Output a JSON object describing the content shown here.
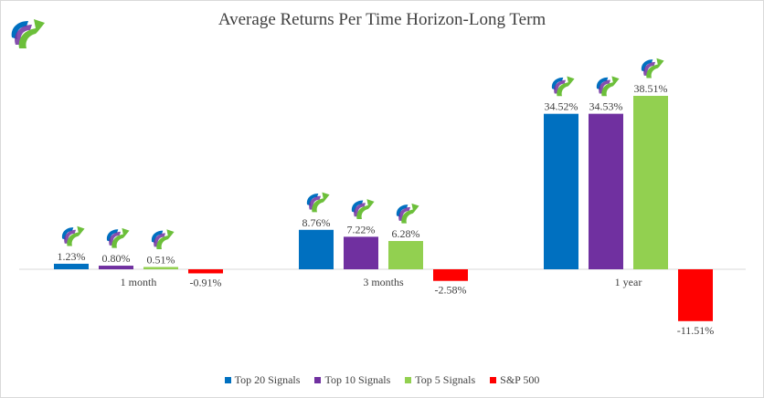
{
  "colors": {
    "top20": "#0070C0",
    "top10": "#7030A0",
    "top5": "#92D050",
    "sp500": "#FF0000",
    "axis": "#d9d9d9",
    "text": "#404040"
  },
  "chart_data": {
    "type": "bar",
    "title": "Average Returns Per Time Horizon-Long Term",
    "categories": [
      "1 month",
      "3 months",
      "1 year"
    ],
    "series": [
      {
        "name": "Top 20 Signals",
        "values": [
          1.23,
          8.76,
          34.52
        ],
        "labels": [
          "1.23%",
          "8.76%",
          "34.52%"
        ]
      },
      {
        "name": "Top 10 Signals",
        "values": [
          0.8,
          7.22,
          34.53
        ],
        "labels": [
          "0.80%",
          "7.22%",
          "34.53%"
        ]
      },
      {
        "name": "Top 5 Signals",
        "values": [
          0.51,
          6.28,
          38.51
        ],
        "labels": [
          "0.51%",
          "6.28%",
          "38.51%"
        ]
      },
      {
        "name": "S&P 500",
        "values": [
          -0.91,
          -2.58,
          -11.51
        ],
        "labels": [
          "-0.91%",
          "-2.58%",
          "-11.51%"
        ]
      }
    ],
    "xlabel": "",
    "ylabel": "",
    "grid": false,
    "legend_position": "bottom",
    "icons": "growth-arrow-logo above positive bars"
  }
}
